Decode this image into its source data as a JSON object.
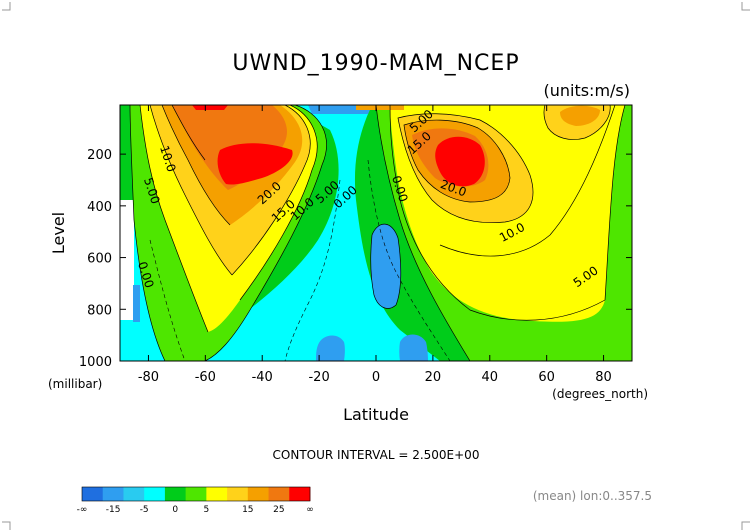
{
  "chart_data": {
    "type": "heatmap",
    "title": "UWND_1990-MAM_NCEP",
    "units": "(units:m/s)",
    "xlabel": "Latitude",
    "x_units": "(degrees_north)",
    "ylabel": "Level",
    "y_units": "(millibar)",
    "xlim": [
      -90,
      90
    ],
    "ylim": [
      1000,
      10
    ],
    "y_reversed": true,
    "x_ticks": [
      -80,
      -60,
      -40,
      -20,
      0,
      20,
      40,
      60,
      80
    ],
    "x_tick_labels": [
      "-80",
      "-60",
      "-40",
      "-20",
      "0",
      "20",
      "40",
      "60",
      "80"
    ],
    "y_ticks": [
      200,
      400,
      600,
      800,
      1000
    ],
    "y_tick_labels": [
      "200",
      "400",
      "600",
      "800",
      "1000"
    ],
    "contour_interval_text": "CONTOUR INTERVAL = 2.500E+00",
    "contour_labels": [
      "10.0",
      "5.00",
      "0.00",
      "20.0",
      "15.0",
      "10.0",
      "5.00",
      "0.00",
      "0.00",
      "5.00",
      "15.0",
      "20.0",
      "10.0",
      "5.00"
    ],
    "colorbar": {
      "colors": [
        "#1f6fe0",
        "#2f9ef0",
        "#29cbf0",
        "#00ffff",
        "#00cc1a",
        "#4ee600",
        "#ffff00",
        "#ffd21a",
        "#f5a000",
        "#f07810",
        "#ff0000"
      ],
      "labels": [
        "-∞",
        "-15",
        "-5",
        "0",
        "5",
        "15",
        "25",
        "∞"
      ]
    },
    "footer": "(mean) lon:0..357.5",
    "features": [
      {
        "name": "southern-jet-core",
        "lat": -50,
        "level_mb": 200,
        "u_ms": 25
      },
      {
        "name": "northern-jet-core",
        "lat": 30,
        "level_mb": 200,
        "u_ms": 27.5
      },
      {
        "name": "equatorial-easterly-cell",
        "lat": 5,
        "level_mb": 550,
        "u_ms": -7.5
      },
      {
        "name": "surface-easterly-cell-a",
        "lat": -15,
        "level_mb": 950,
        "u_ms": -5
      },
      {
        "name": "surface-easterly-cell-b",
        "lat": 10,
        "level_mb": 950,
        "u_ms": -5
      },
      {
        "name": "high-latitude-upper-max",
        "lat": 65,
        "level_mb": 60,
        "u_ms": 22.5
      }
    ]
  }
}
